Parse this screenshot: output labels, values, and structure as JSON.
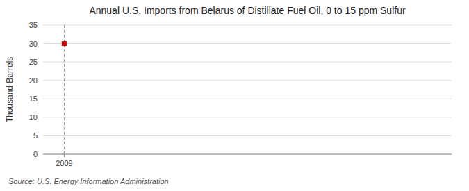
{
  "chart_data": {
    "type": "scatter",
    "title": "Annual U.S. Imports from Belarus of Distillate Fuel Oil, 0 to 15 ppm Sulfur",
    "y_label": "Thousand Barrels",
    "source": "Source: U.S. Energy Information Administration",
    "x": [
      2009
    ],
    "values": [
      30
    ],
    "color": "#cc0000",
    "marker": "square",
    "xlim": [
      2008.4,
      2020
    ],
    "xticks": [
      2009
    ],
    "ylim": [
      0,
      35
    ],
    "yticks": [
      0,
      5,
      10,
      15,
      20,
      25,
      30,
      35
    ],
    "grid": true
  }
}
